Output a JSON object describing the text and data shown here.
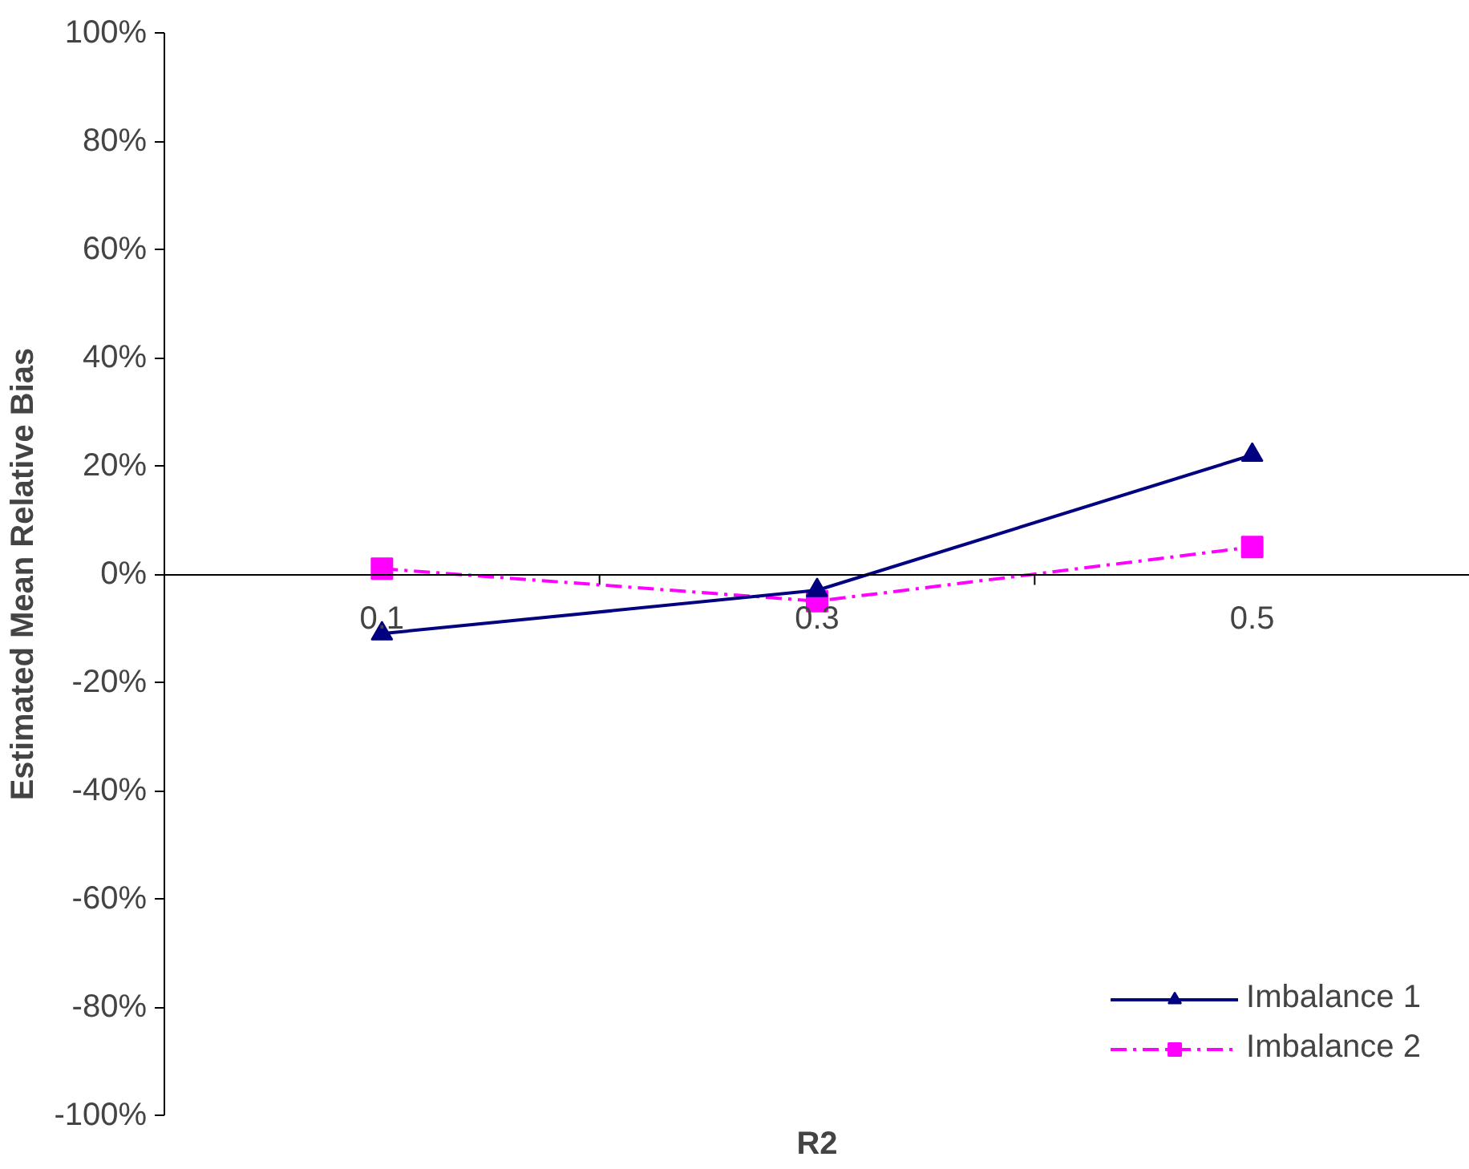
{
  "chart_data": {
    "type": "line",
    "xlabel": "R2",
    "ylabel": "Estimated Mean Relative Bias",
    "categories": [
      "0.1",
      "0.3",
      "0.5"
    ],
    "series": [
      {
        "name": "Imbalance 1",
        "color": "#000080",
        "values": [
          -11,
          -3,
          22
        ],
        "marker": "triangle",
        "line_style": "solid"
      },
      {
        "name": "Imbalance 2",
        "color": "#ff00ff",
        "values": [
          1,
          -5,
          5
        ],
        "marker": "square",
        "line_style": "dashdot"
      }
    ],
    "ylim": [
      -100,
      100
    ],
    "yticks": [
      {
        "value": -100,
        "label": "-100%"
      },
      {
        "value": -80,
        "label": "-80%"
      },
      {
        "value": -60,
        "label": "-60%"
      },
      {
        "value": -40,
        "label": "-40%"
      },
      {
        "value": -20,
        "label": "-20%"
      },
      {
        "value": 0,
        "label": "0%"
      },
      {
        "value": 20,
        "label": "20%"
      },
      {
        "value": 40,
        "label": "40%"
      },
      {
        "value": 60,
        "label": "60%"
      },
      {
        "value": 80,
        "label": "80%"
      },
      {
        "value": 100,
        "label": "100%"
      }
    ],
    "grid": false,
    "legend": "bottom right"
  }
}
